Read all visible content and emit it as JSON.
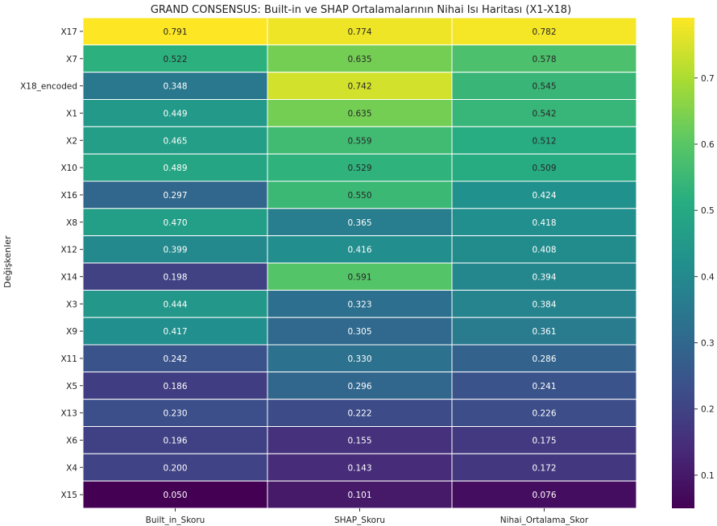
{
  "chart_data": {
    "type": "heatmap",
    "title": "GRAND CONSENSUS: Built-in ve SHAP Ortalamalarının Nihai Isı Haritası (X1-X18)",
    "xlabel": "",
    "ylabel": "Değişkenler",
    "columns": [
      "Built_in_Skoru",
      "SHAP_Skoru",
      "Nihai_Ortalama_Skor"
    ],
    "rows": [
      "X17",
      "X7",
      "X18_encoded",
      "X1",
      "X2",
      "X10",
      "X16",
      "X8",
      "X12",
      "X14",
      "X3",
      "X9",
      "X11",
      "X5",
      "X13",
      "X6",
      "X4",
      "X15"
    ],
    "values": [
      [
        0.791,
        0.774,
        0.782
      ],
      [
        0.522,
        0.635,
        0.578
      ],
      [
        0.348,
        0.742,
        0.545
      ],
      [
        0.449,
        0.635,
        0.542
      ],
      [
        0.465,
        0.559,
        0.512
      ],
      [
        0.489,
        0.529,
        0.509
      ],
      [
        0.297,
        0.55,
        0.424
      ],
      [
        0.47,
        0.365,
        0.418
      ],
      [
        0.399,
        0.416,
        0.408
      ],
      [
        0.198,
        0.591,
        0.394
      ],
      [
        0.444,
        0.323,
        0.384
      ],
      [
        0.417,
        0.305,
        0.361
      ],
      [
        0.242,
        0.33,
        0.286
      ],
      [
        0.186,
        0.296,
        0.241
      ],
      [
        0.23,
        0.222,
        0.226
      ],
      [
        0.196,
        0.155,
        0.175
      ],
      [
        0.2,
        0.143,
        0.172
      ],
      [
        0.05,
        0.101,
        0.076
      ]
    ],
    "colormap": "viridis",
    "vmin": 0.05,
    "vmax": 0.791,
    "colorbar_ticks": [
      0.1,
      0.2,
      0.3,
      0.4,
      0.5,
      0.6,
      0.7
    ],
    "value_format": "0.000"
  }
}
